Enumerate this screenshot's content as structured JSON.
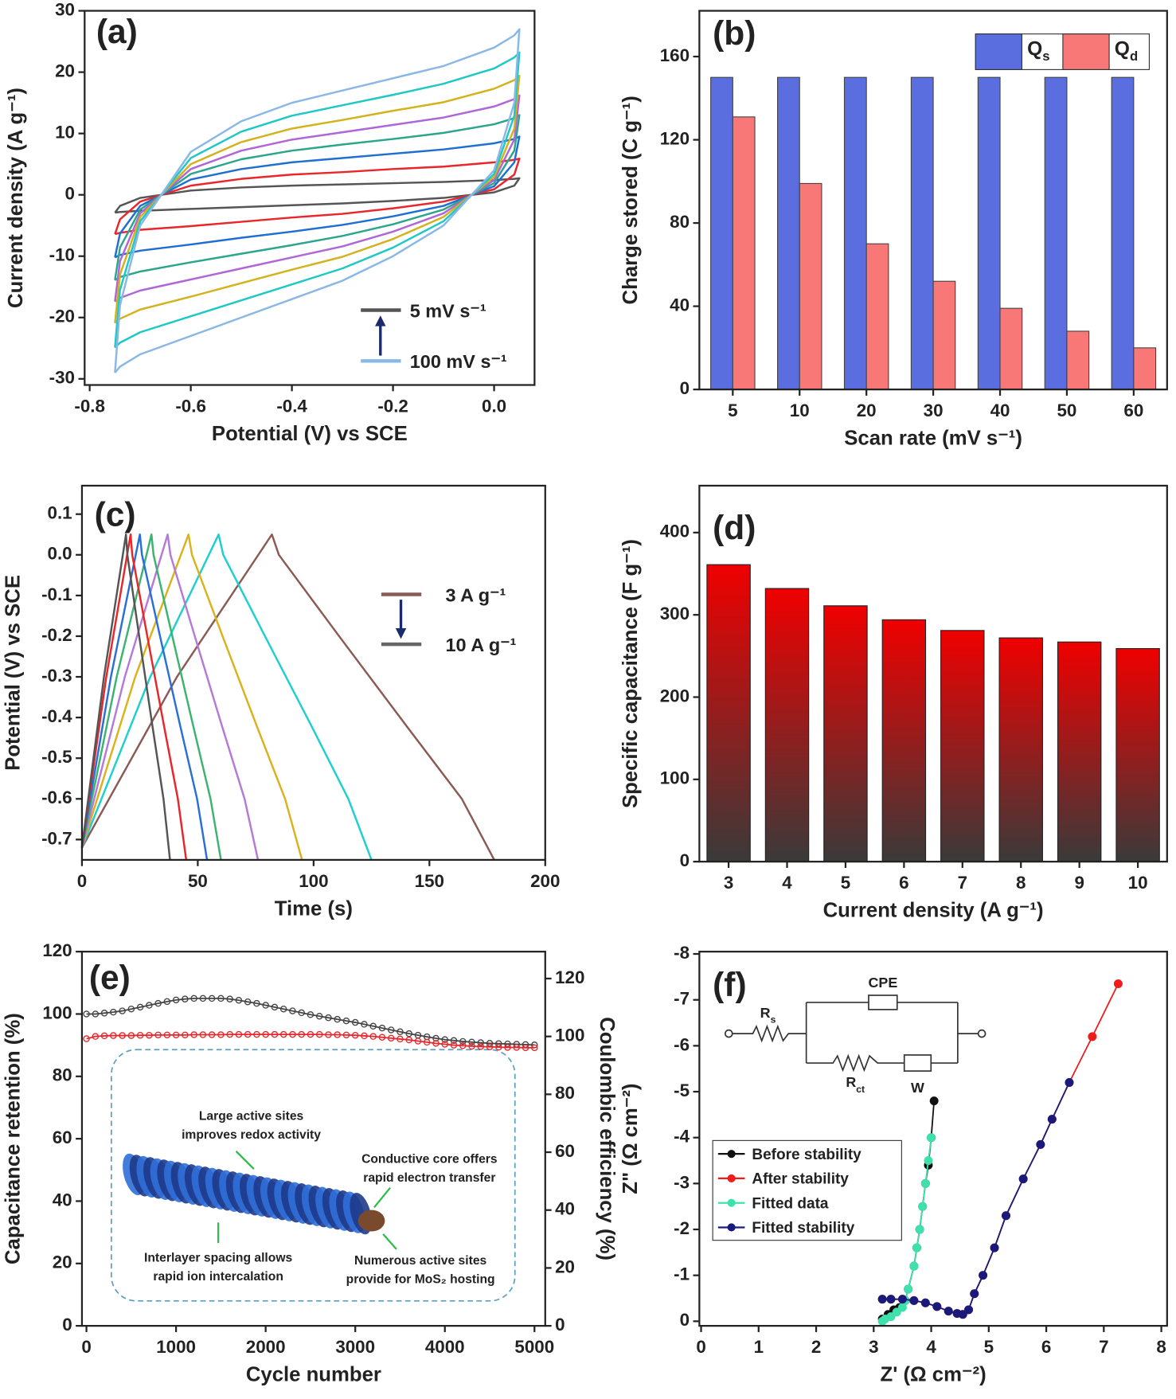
{
  "chart_data": [
    {
      "type": "line",
      "panel_label": "(a)",
      "xlabel": "Potential (V) vs SCE",
      "ylabel": "Current density (A g⁻¹)",
      "xlim": [
        -0.81,
        0.08
      ],
      "ylim": [
        -31,
        30
      ],
      "xticks": [
        -0.8,
        -0.6,
        -0.4,
        -0.2,
        {
          "value": 0,
          "label": "0.0"
        }
      ],
      "yticks": [
        -30,
        -20,
        -10,
        0,
        10,
        20,
        30
      ],
      "x": [
        -0.75,
        -0.74,
        -0.7,
        -0.6,
        -0.5,
        -0.4,
        -0.3,
        -0.2,
        -0.1,
        0,
        0.04,
        0.05,
        0.05,
        0.04,
        0,
        -0.1,
        -0.2,
        -0.3,
        -0.4,
        -0.5,
        -0.6,
        -0.7,
        -0.74,
        -0.75
      ],
      "series": [
        {
          "color": "#555555",
          "values": [
            -2.9,
            -1.8,
            -0.5,
            0.7,
            1.2,
            1.5,
            1.7,
            1.9,
            2.1,
            2.4,
            2.6,
            2.7,
            2.7,
            1.5,
            0.4,
            -0.5,
            -1,
            -1.4,
            -1.7,
            -2,
            -2.3,
            -2.6,
            -2.8,
            -2.9
          ]
        },
        {
          "color": "#e8262b",
          "values": [
            -6.4,
            -4,
            -1.1,
            1.5,
            2.6,
            3.3,
            3.7,
            4.2,
            4.6,
            5.3,
            5.7,
            5.9,
            5.9,
            3.3,
            0.9,
            -1.1,
            -2.2,
            -3.1,
            -3.7,
            -4.4,
            -5.1,
            -5.7,
            -6.2,
            -6.4
          ]
        },
        {
          "color": "#1f6fd1",
          "values": [
            -10.2,
            -6.3,
            -1.8,
            2.5,
            4.2,
            5.3,
            6,
            6.7,
            7.4,
            8.4,
            9.1,
            9.5,
            9.5,
            5.3,
            1.4,
            -1.8,
            -3.5,
            -4.9,
            -6,
            -7,
            -8.1,
            -9.1,
            -9.8,
            -10.2
          ]
        },
        {
          "color": "#2ca58d",
          "values": [
            -13.9,
            -8.6,
            -2.4,
            3.4,
            5.8,
            7.2,
            8.2,
            9.1,
            10.1,
            11.5,
            12.5,
            13,
            13,
            7.2,
            1.9,
            -2.4,
            -4.8,
            -6.7,
            -8.2,
            -9.6,
            -11,
            -12.5,
            -13.4,
            -13.9
          ]
        },
        {
          "color": "#b066d6",
          "values": [
            -17.4,
            -10.8,
            -3,
            4.2,
            7.2,
            9,
            10.2,
            11.4,
            12.6,
            14.4,
            15.6,
            16.2,
            16.2,
            9,
            2.4,
            -3,
            -6,
            -8.4,
            -10.2,
            -12,
            -13.8,
            -15.6,
            -16.8,
            -17.4
          ]
        },
        {
          "color": "#d4b21c",
          "values": [
            -20.9,
            -13,
            -3.6,
            5,
            8.6,
            10.8,
            12.2,
            13.7,
            15.1,
            17.3,
            18.7,
            19.4,
            19.4,
            10.8,
            2.9,
            -3.6,
            -7.2,
            -10.1,
            -12.2,
            -14.4,
            -16.6,
            -18.7,
            -20.2,
            -20.9
          ]
        },
        {
          "color": "#1fc7c7",
          "values": [
            -24.9,
            -15.5,
            -4.3,
            6,
            10.3,
            12.9,
            14.6,
            16.3,
            18.1,
            20.6,
            22.4,
            23.2,
            23.2,
            12.9,
            3.4,
            -4.3,
            -8.6,
            -12,
            -14.6,
            -17.2,
            -19.8,
            -22.4,
            -24.1,
            -24.9
          ]
        },
        {
          "color": "#8ab8e6",
          "values": [
            -29,
            -18,
            -5,
            7,
            12,
            15,
            17,
            19,
            21,
            24,
            26,
            27,
            27,
            15,
            4,
            -5,
            -10,
            -14,
            -17,
            -20,
            -23,
            -26,
            -28,
            -29
          ]
        }
      ],
      "annotations": [
        {
          "text": "5 mV s⁻¹",
          "color": "#555555"
        },
        {
          "text": "100 mV s⁻¹",
          "color": "#8ab8e6"
        }
      ]
    },
    {
      "type": "bar",
      "panel_label": "(b)",
      "xlabel": "Scan rate (mV s⁻¹)",
      "ylabel": "Charge stored (C g⁻¹)",
      "categories": [
        "5",
        "10",
        "20",
        "30",
        "40",
        "50",
        "60"
      ],
      "ylim": [
        0,
        182
      ],
      "yticks": [
        0,
        40,
        80,
        120,
        160
      ],
      "legend": "upper right",
      "series": [
        {
          "name": "Qs",
          "color": "#5a6ee0",
          "values": [
            150,
            150,
            150,
            150,
            150,
            150,
            150
          ]
        },
        {
          "name": "Qd",
          "color": "#f87878",
          "values": [
            131,
            99,
            70,
            52,
            39,
            28,
            20
          ]
        }
      ]
    },
    {
      "type": "line",
      "panel_label": "(c)",
      "xlabel": "Time (s)",
      "ylabel": "Potential (V) vs SCE",
      "xlim": [
        0,
        200
      ],
      "ylim": [
        -0.75,
        0.17
      ],
      "xticks": [
        0,
        50,
        100,
        150,
        200
      ],
      "yticks": [
        0.1,
        {
          "value": 0,
          "label": "0.0"
        },
        -0.1,
        -0.2,
        -0.3,
        -0.4,
        -0.5,
        -0.6,
        -0.7
      ],
      "series": [
        {
          "color": "#8b5a55",
          "x": [
            0,
            41,
            82,
            85,
            111,
            140,
            164,
            178
          ],
          "values": [
            -0.72,
            -0.3,
            0.05,
            0,
            -0.2,
            -0.42,
            -0.6,
            -0.75
          ]
        },
        {
          "color": "#1fcfcf",
          "x": [
            0,
            29.5,
            59,
            61,
            79,
            99,
            115,
            125
          ],
          "values": [
            -0.72,
            -0.3,
            0.05,
            0,
            -0.2,
            -0.42,
            -0.6,
            -0.75
          ]
        },
        {
          "color": "#d9b21c",
          "x": [
            0,
            23,
            46,
            47.5,
            60.7,
            75.4,
            87.7,
            95
          ],
          "values": [
            -0.72,
            -0.3,
            0.05,
            0,
            -0.2,
            -0.42,
            -0.6,
            -0.75
          ]
        },
        {
          "color": "#b57ad9",
          "x": [
            0,
            18.5,
            37,
            38.2,
            48.7,
            60.4,
            70.2,
            76
          ],
          "values": [
            -0.72,
            -0.3,
            0.05,
            0,
            -0.2,
            -0.42,
            -0.6,
            -0.75
          ]
        },
        {
          "color": "#3cb371",
          "x": [
            0,
            15,
            30,
            30.9,
            39,
            48,
            55.5,
            60
          ],
          "values": [
            -0.72,
            -0.3,
            0.05,
            0,
            -0.2,
            -0.42,
            -0.6,
            -0.75
          ]
        },
        {
          "color": "#2a6fd6",
          "x": [
            0,
            12.5,
            25,
            25.9,
            33.7,
            42.4,
            49.7,
            54
          ],
          "values": [
            -0.72,
            -0.3,
            0.05,
            0,
            -0.2,
            -0.42,
            -0.6,
            -0.75
          ]
        },
        {
          "color": "#e8262b",
          "x": [
            0,
            10.5,
            21,
            21.7,
            28.2,
            35.4,
            41.4,
            45
          ],
          "values": [
            -0.72,
            -0.3,
            0.05,
            0,
            -0.2,
            -0.42,
            -0.6,
            -0.75
          ]
        },
        {
          "color": "#555555",
          "x": [
            0,
            9.5,
            19,
            19.6,
            24.7,
            30.4,
            35.2,
            38
          ],
          "values": [
            -0.72,
            -0.3,
            0.05,
            0,
            -0.2,
            -0.42,
            -0.6,
            -0.75
          ]
        }
      ],
      "annotations": [
        {
          "text": "3 A g⁻¹",
          "color": "#8b5a55"
        },
        {
          "text": "10 A g⁻¹",
          "color": "#666666"
        }
      ]
    },
    {
      "type": "bar",
      "panel_label": "(d)",
      "xlabel": "Current density (A g⁻¹)",
      "ylabel": "Specific capacitance (F g⁻¹)",
      "categories": [
        "3",
        "4",
        "5",
        "6",
        "7",
        "8",
        "9",
        "10"
      ],
      "values": [
        361,
        332,
        311,
        294,
        281,
        272,
        267,
        259
      ],
      "color": "#f00000",
      "gradient_to": "#3a3a3a",
      "ylim": [
        0,
        457
      ],
      "yticks": [
        0,
        100,
        200,
        300,
        400
      ]
    },
    {
      "type": "line",
      "markers": "open",
      "panel_label": "(e)",
      "xlabel": "Cycle number",
      "ylabel": "Capacitance retention (%)",
      "y2label": "Coulombic efficiency (%)",
      "xlim": [
        -50,
        5120
      ],
      "ylim": [
        0,
        120
      ],
      "y2lim": [
        0,
        129.3
      ],
      "xticks": [
        0,
        1000,
        2000,
        3000,
        4000,
        5000
      ],
      "yticks": [
        0,
        20,
        40,
        60,
        80,
        100,
        120
      ],
      "y2ticks": [
        0,
        20,
        40,
        60,
        80,
        100,
        120
      ],
      "x": [
        0,
        100,
        200,
        300,
        400,
        500,
        600,
        700,
        800,
        900,
        1000,
        1100,
        1200,
        1300,
        1400,
        1500,
        1600,
        1700,
        1800,
        1900,
        2000,
        2100,
        2200,
        2300,
        2400,
        2500,
        2600,
        2700,
        2800,
        2900,
        3000,
        3100,
        3200,
        3300,
        3400,
        3500,
        3600,
        3700,
        3800,
        3900,
        4000,
        4100,
        4200,
        4300,
        4400,
        4500,
        4600,
        4700,
        4800,
        4900,
        5000
      ],
      "series": [
        {
          "color": "#444444",
          "values": [
            100,
            100,
            100.3,
            100.6,
            101,
            101.6,
            102.2,
            102.8,
            103.4,
            104,
            104.5,
            104.8,
            105,
            105,
            105,
            105,
            104.8,
            104.4,
            103.9,
            103.4,
            102.8,
            102.2,
            101.6,
            101,
            100.4,
            99.8,
            99.3,
            98.8,
            98.3,
            97.8,
            97.3,
            96.7,
            96.1,
            95.5,
            94.9,
            94.3,
            93.7,
            93.2,
            92.7,
            92.2,
            91.8,
            91.5,
            91.2,
            91,
            90.8,
            90.6,
            90.5,
            90.4,
            90.3,
            90.2,
            90.1
          ]
        },
        {
          "color": "#e8262b",
          "axis": "y2",
          "values": [
            99.2,
            100,
            100.2,
            100.3,
            100.3,
            100.3,
            100.4,
            100.4,
            100.5,
            100.5,
            100.5,
            100.5,
            100.6,
            100.6,
            100.6,
            100.6,
            100.7,
            100.7,
            100.7,
            100.7,
            100.7,
            100.7,
            100.7,
            100.7,
            100.7,
            100.7,
            100.7,
            100.6,
            100.6,
            100.5,
            100.4,
            100.2,
            100,
            99.7,
            99.4,
            99.1,
            98.8,
            98.4,
            98,
            97.6,
            97.3,
            97,
            96.8,
            96.6,
            96.5,
            96.4,
            96.3,
            96.2,
            96.2,
            96.1,
            96.1
          ]
        }
      ],
      "inset_labels": [
        [
          "Large active sites",
          "improves redox activity"
        ],
        [
          "Conductive core offers",
          "rapid electron transfer"
        ],
        [
          "Interlayer spacing allows",
          "rapid ion intercalation"
        ],
        [
          "Numerous active sites",
          "provide for MoS₂ hosting"
        ]
      ]
    },
    {
      "type": "line",
      "markers": "filled",
      "panel_label": "(f)",
      "xlabel": "Z' (Ω cm⁻²)",
      "ylabel": "Z\" (Ω cm⁻²)",
      "xlim": [
        -0.03,
        8.1
      ],
      "ylim": [
        0.1,
        -8.05
      ],
      "xticks": [
        0,
        1,
        2,
        3,
        4,
        5,
        6,
        7,
        8
      ],
      "yticks": [
        0,
        -1,
        -2,
        -3,
        -4,
        -5,
        -6,
        -7,
        -8
      ],
      "legend": "lower left",
      "series": [
        {
          "name": "Before stability",
          "color": "#111111",
          "x": [
            3.15,
            3.25,
            3.35,
            3.45,
            3.55,
            3.6,
            3.7,
            3.75,
            3.8,
            3.85,
            3.9,
            3.95,
            4.0,
            4.05
          ],
          "values": [
            -0.05,
            -0.15,
            -0.25,
            -0.3,
            -0.45,
            -0.7,
            -1.2,
            -1.6,
            -2.0,
            -2.5,
            -3.0,
            -3.4,
            -4.0,
            -4.8
          ]
        },
        {
          "name": "After stability",
          "color": "#ee1c1c",
          "x": [
            3.15,
            3.3,
            3.5,
            3.7,
            3.9,
            4.1,
            4.3,
            4.45,
            4.55,
            4.65,
            4.75,
            4.9,
            5.1,
            5.3,
            5.6,
            5.9,
            6.1,
            6.4,
            6.8,
            7.25
          ],
          "values": [
            -0.48,
            -0.48,
            -0.48,
            -0.45,
            -0.4,
            -0.32,
            -0.22,
            -0.17,
            -0.15,
            -0.25,
            -0.6,
            -1.0,
            -1.6,
            -2.3,
            -3.1,
            -3.85,
            -4.4,
            -5.2,
            -6.2,
            -7.35
          ]
        },
        {
          "name": "Fitted data",
          "color": "#3ee0ac",
          "x": [
            3.15,
            3.2,
            3.3,
            3.4,
            3.5,
            3.55,
            3.6,
            3.7,
            3.75,
            3.8,
            3.85,
            3.9,
            3.95,
            4.0
          ],
          "values": [
            0,
            -0.05,
            -0.1,
            -0.2,
            -0.3,
            -0.45,
            -0.7,
            -1.2,
            -1.6,
            -2.0,
            -2.5,
            -3.0,
            -3.5,
            -4.0
          ]
        },
        {
          "name": "Fitted stability",
          "color": "#1a1a7a",
          "x": [
            3.15,
            3.3,
            3.5,
            3.7,
            3.9,
            4.1,
            4.3,
            4.45,
            4.55,
            4.65,
            4.75,
            4.9,
            5.1,
            5.3,
            5.6,
            5.9,
            6.1,
            6.4
          ],
          "values": [
            -0.48,
            -0.48,
            -0.48,
            -0.45,
            -0.4,
            -0.32,
            -0.22,
            -0.17,
            -0.15,
            -0.25,
            -0.6,
            -1.0,
            -1.6,
            -2.3,
            -3.1,
            -3.85,
            -4.4,
            -5.2
          ]
        }
      ],
      "circuit_labels": [
        "CPE",
        "Rs",
        "Rct",
        "W"
      ]
    }
  ]
}
